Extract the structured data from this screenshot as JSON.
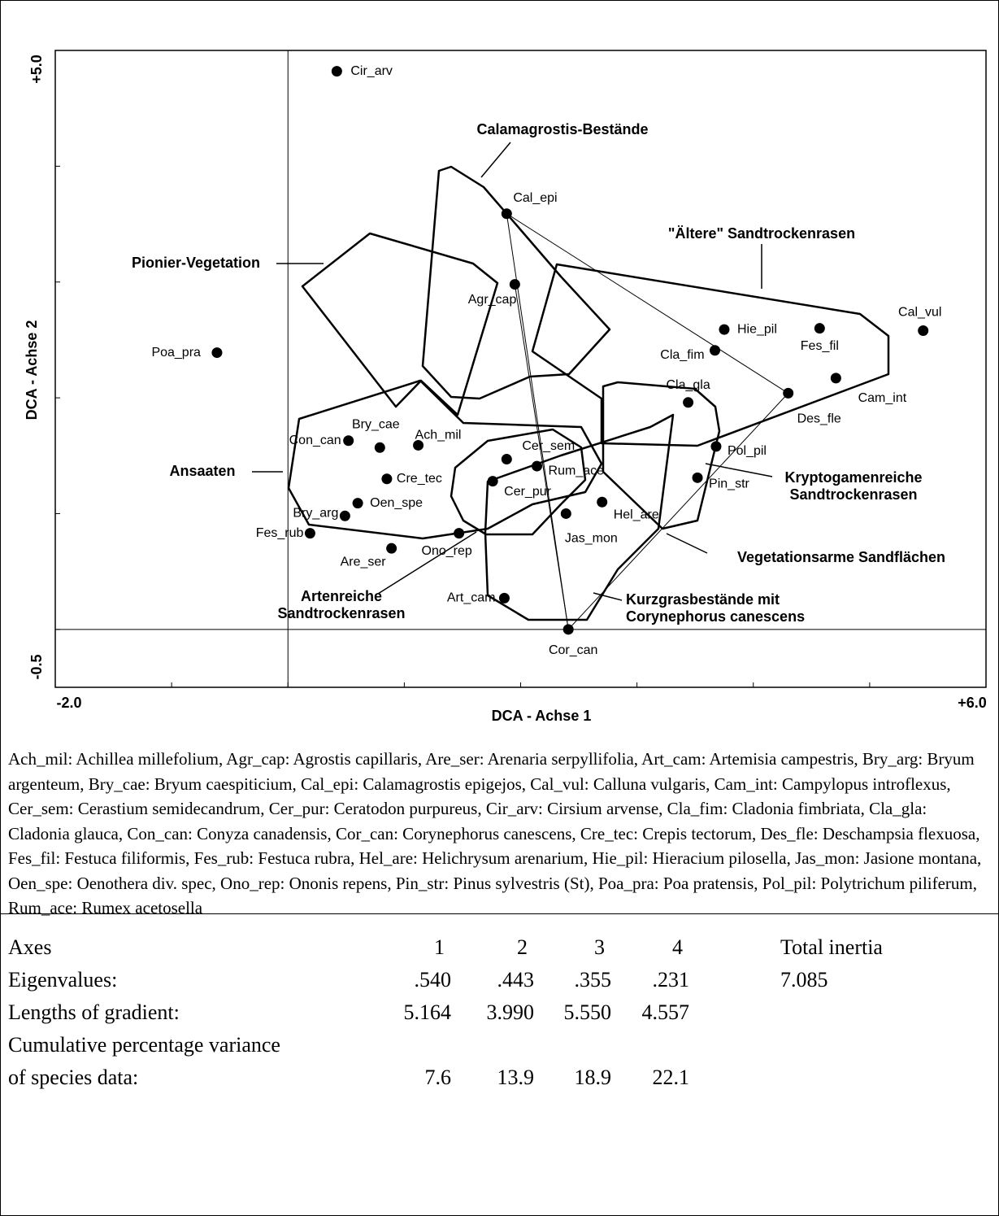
{
  "chart_data": {
    "type": "scatter",
    "xlabel": "DCA - Achse 1",
    "ylabel": "DCA - Achse 2",
    "xlim": [
      -2,
      6
    ],
    "ylim": [
      -0.5,
      5
    ],
    "xticks": [
      {
        "value": -2,
        "label": "-2.0"
      },
      {
        "value": 6,
        "label": "+6.0"
      }
    ],
    "yticks": [
      {
        "value": -0.5,
        "label": "-0.5"
      },
      {
        "value": 5,
        "label": "+5.0"
      }
    ],
    "xminorticks": [
      -1,
      0,
      1,
      2,
      3,
      4,
      5
    ],
    "yminorticks": [
      0,
      1,
      2,
      3,
      4
    ],
    "zero_lines": true,
    "color": "#000000",
    "labels": [
      "Cir_arv",
      "Cal_epi",
      "Agr_cap",
      "Poa_pra",
      "Hie_pil",
      "Fes_fil",
      "Cal_vul",
      "Cla_fim",
      "Cam_int",
      "Des_fle",
      "Cla_gla",
      "Con_can",
      "Bry_cae",
      "Ach_mil",
      "Pol_pil",
      "Cer_sem",
      "Rum_ace",
      "Cre_tec",
      "Cer_pur",
      "Pin_str",
      "Oen_spe",
      "Hel_are",
      "Bry_arg",
      "Jas_mon",
      "Fes_rub",
      "Ono_rep",
      "Are_ser",
      "Art_cam",
      "Cor_can"
    ],
    "x": [
      0.42,
      1.88,
      1.95,
      -0.61,
      3.75,
      4.57,
      5.46,
      3.67,
      4.71,
      4.3,
      3.44,
      0.52,
      0.79,
      1.12,
      3.68,
      1.88,
      2.14,
      0.85,
      1.76,
      3.52,
      0.6,
      2.7,
      0.49,
      2.39,
      0.19,
      1.47,
      0.89,
      1.86,
      2.41
    ],
    "values": [
      4.82,
      3.59,
      2.98,
      2.39,
      2.59,
      2.6,
      2.58,
      2.41,
      2.17,
      2.04,
      1.96,
      1.63,
      1.57,
      1.59,
      1.58,
      1.47,
      1.41,
      1.3,
      1.28,
      1.31,
      1.09,
      1.1,
      0.98,
      1.0,
      0.83,
      0.83,
      0.7,
      0.27,
      0.0
    ],
    "annotations": [
      [
        "Calamagrostis-Bestände"
      ],
      [
        "\"Ältere\" Sandtrockenrasen"
      ],
      [
        "Pionier-Vegetation"
      ],
      [
        "Ansaaten"
      ],
      [
        "Kryptogamenreiche",
        "Sandtrockenrasen"
      ],
      [
        "Vegetationsarme Sandflächen"
      ],
      [
        "Kurzgrasbestände mit",
        "Corynephorus canescens"
      ],
      [
        "Artenreiche",
        "Sandtrockenrasen"
      ]
    ]
  },
  "caption": "Ach_mil: Achillea millefolium, Agr_cap: Agrostis capillaris, Are_ser: Arenaria serpyllifolia, Art_cam: Artemisia campestris, Bry_arg: Bryum argenteum, Bry_cae: Bryum caespiticium, Cal_epi: Calamagrostis epigejos, Cal_vul: Calluna vulgaris, Cam_int: Campylopus introflexus, Cer_sem: Cerastium semidecandrum, Cer_pur: Ceratodon purpureus, Cir_arv: Cirsium arvense, Cla_fim: Cladonia fimbriata, Cla_gla: Cladonia glauca, Con_can: Conyza canadensis, Cor_can: Corynephorus canescens, Cre_tec: Crepis tectorum, Des_fle: Deschampsia flexuosa, Fes_fil: Festuca filiformis, Fes_rub: Festuca rubra, Hel_are: Helichrysum arenarium, Hie_pil: Hieracium pilosella, Jas_mon: Jasione montana, Oen_spe: Oenothera div. spec, Ono_rep: Ononis repens, Pin_str: Pinus sylvestris (St), Poa_pra: Poa pratensis, Pol_pil: Polytrichum piliferum, Rum_ace: Rumex acetosella",
  "table": {
    "header": {
      "label": [
        "Axes"
      ],
      "values": [
        "1",
        "2",
        "3",
        "4"
      ],
      "total": "Total inertia"
    },
    "rows": [
      {
        "label": [
          "Eigenvalues:"
        ],
        "values": [
          ".540",
          ".443",
          ".355",
          ".231"
        ],
        "total": "7.085"
      },
      {
        "label": [
          "Lengths of gradient:"
        ],
        "values": [
          "5.164",
          "3.990",
          "5.550",
          "4.557"
        ]
      },
      {
        "label": [
          "Cumulative percentage variance",
          "of species data:"
        ],
        "values": [
          "7.6",
          "13.9",
          "18.9",
          "22.1"
        ]
      }
    ]
  }
}
